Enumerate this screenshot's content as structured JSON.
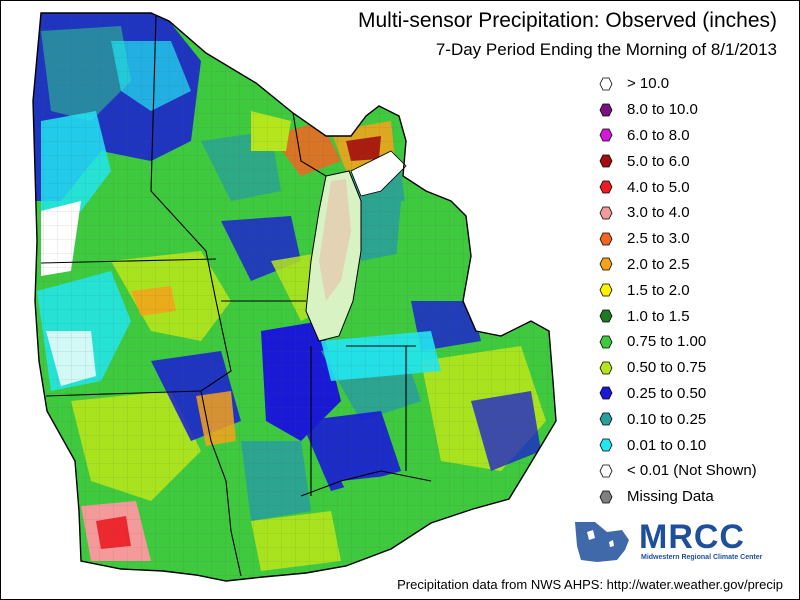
{
  "header": {
    "title": "Multi-sensor Precipitation:  Observed (inches)",
    "subtitle": "7-Day Period Ending the Morning of 8/1/2013"
  },
  "legend": {
    "items": [
      {
        "label": "> 10.0",
        "color": "#ffffff"
      },
      {
        "label": "8.0 to 10.0",
        "color": "#7a1081"
      },
      {
        "label": "6.0 to 8.0",
        "color": "#d21ad8"
      },
      {
        "label": "5.0 to 6.0",
        "color": "#a30d10"
      },
      {
        "label": "4.0 to 5.0",
        "color": "#ec1c24"
      },
      {
        "label": "3.0 to 4.0",
        "color": "#f59a9a"
      },
      {
        "label": "2.5 to 3.0",
        "color": "#f26522"
      },
      {
        "label": "2.0 to 2.5",
        "color": "#f7a21b"
      },
      {
        "label": "1.5 to 2.0",
        "color": "#fff200"
      },
      {
        "label": "1.0 to 1.5",
        "color": "#1e7a1e"
      },
      {
        "label": "0.75 to 1.00",
        "color": "#3ec93e"
      },
      {
        "label": "0.50 to 0.75",
        "color": "#b5e61d"
      },
      {
        "label": "0.25 to 0.50",
        "color": "#1a1ad6"
      },
      {
        "label": "0.10 to 0.25",
        "color": "#2a9d9d"
      },
      {
        "label": "0.01 to 0.10",
        "color": "#22e6f0"
      },
      {
        "label": "< 0.01 (Not Shown)",
        "color": "#ffffff"
      },
      {
        "label": "Missing Data",
        "color": "#808080"
      }
    ]
  },
  "logo": {
    "text": "MRCC",
    "subtext": "Midwestern Regional Climate Center"
  },
  "footer": {
    "credit": "Precipitation data from NWS AHPS: http://water.weather.gov/precip"
  }
}
